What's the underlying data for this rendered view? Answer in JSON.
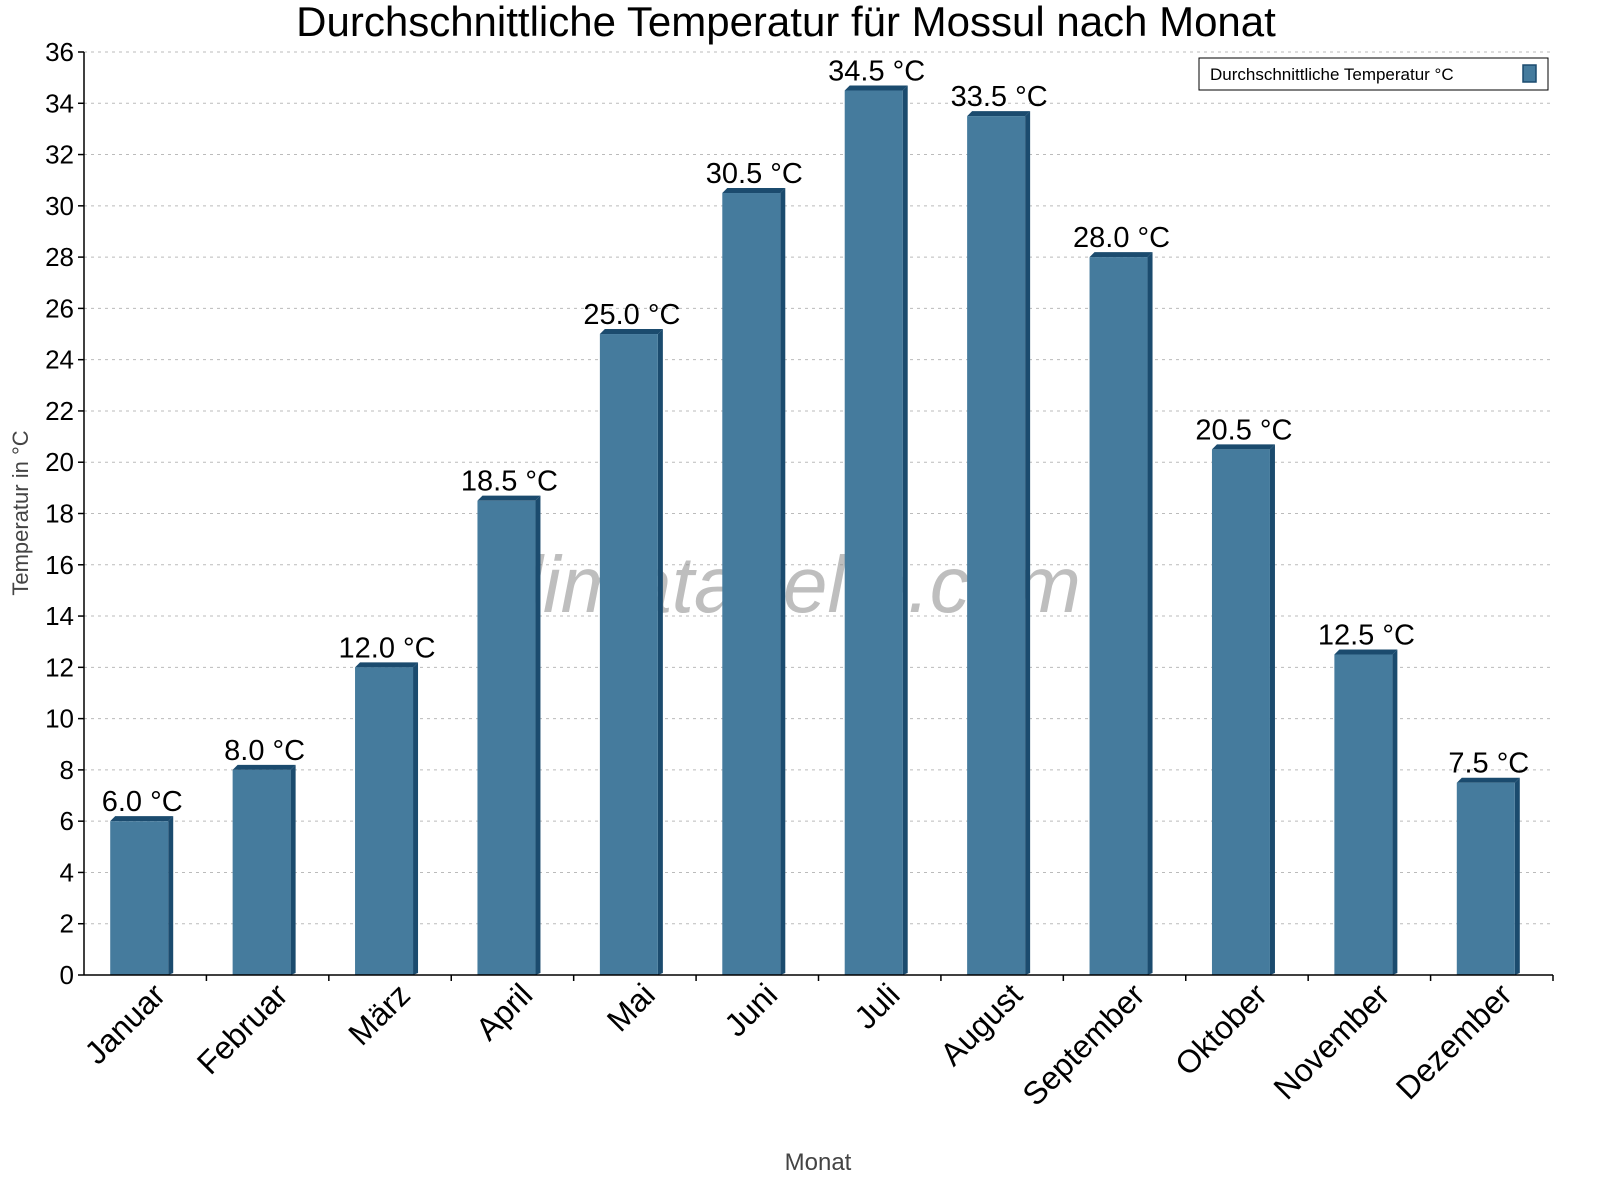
{
  "chart_data": {
    "type": "bar",
    "title": "Durchschnittliche Temperatur für Mossul nach Monat",
    "xlabel": "Monat",
    "ylabel": "Temperatur in °C",
    "categories": [
      "Januar",
      "Februar",
      "März",
      "April",
      "Mai",
      "Juni",
      "Juli",
      "August",
      "September",
      "Oktober",
      "November",
      "Dezember"
    ],
    "series": [
      {
        "name": "Durchschnittliche Temperatur °C",
        "values": [
          6.0,
          8.0,
          12.0,
          18.5,
          25.0,
          30.5,
          34.5,
          33.5,
          28.0,
          20.5,
          12.5,
          7.5
        ]
      }
    ],
    "data_labels": [
      "6.0 °C",
      "8.0 °C",
      "12.0 °C",
      "18.5 °C",
      "25.0 °C",
      "30.5 °C",
      "34.5 °C",
      "33.5 °C",
      "28.0 °C",
      "20.5 °C",
      "12.5 °C",
      "7.5 °C"
    ],
    "ylim": [
      0,
      36
    ],
    "yticks": [
      0,
      2,
      4,
      6,
      8,
      10,
      12,
      14,
      16,
      18,
      20,
      22,
      24,
      26,
      28,
      30,
      32,
      34,
      36
    ],
    "grid": true,
    "legend_position": "top-right",
    "colors": {
      "bar": "#457b9d",
      "bar_shade": "#1b4b6e"
    },
    "watermark": "klimatabelle.com"
  }
}
